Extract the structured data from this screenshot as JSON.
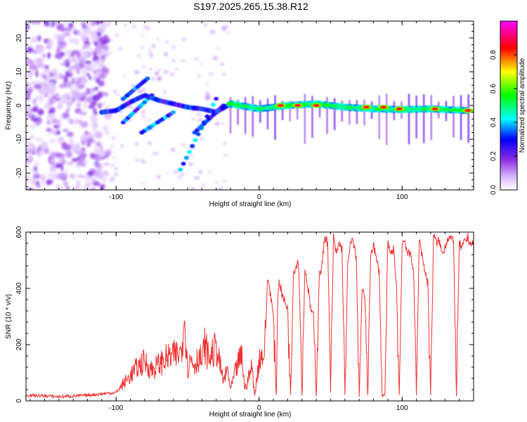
{
  "figure_title": "S197.2025.265.15.38.R12",
  "chart_data": [
    {
      "type": "heatmap",
      "title": "S197.2025.265.15.38.R12",
      "xlabel": "Height of straight line (km)",
      "ylabel": "Frequency (Hz)",
      "xlim": [
        -163,
        150
      ],
      "ylim": [
        -25,
        25
      ],
      "x_ticks": [
        -100,
        0,
        100
      ],
      "x_tick_labels": [
        "-100",
        "0",
        "100"
      ],
      "y_ticks": [
        20,
        10,
        0,
        -10,
        -20
      ],
      "y_tick_labels": [
        "20",
        "10",
        "0",
        "-10",
        "-20"
      ],
      "colorbar": {
        "label": "Normalized spectral amplitude",
        "range": [
          0,
          1
        ],
        "ticks": [
          0.0,
          0.2,
          0.4,
          0.6,
          0.8
        ],
        "tick_labels": [
          "0.0",
          "0.2",
          "0.4",
          "0.6",
          "0.8"
        ],
        "colormap": [
          "#ffffff",
          "#d8b4ff",
          "#8a2be2",
          "#0000ff",
          "#00ffff",
          "#00ff00",
          "#ffff00",
          "#ff0000",
          "#ff00ff"
        ]
      },
      "carrier_line": {
        "x": [
          -110,
          -100,
          -90,
          -80,
          -70,
          -60,
          -50,
          -40,
          -30,
          -20,
          0,
          20,
          40,
          60,
          80,
          100,
          120,
          145
        ],
        "frequency": [
          -2,
          -1.5,
          1,
          3,
          1.5,
          0.5,
          -0.5,
          -1,
          -2,
          0.5,
          -1,
          0,
          0.5,
          -0.5,
          -1,
          -1.2,
          -1,
          -1.5
        ]
      },
      "bright_peaks": [
        {
          "x": 15,
          "frequency": 0,
          "amplitude": 1.0
        },
        {
          "x": 27,
          "frequency": 0,
          "amplitude": 0.95
        },
        {
          "x": 40,
          "frequency": 0,
          "amplitude": 0.95
        },
        {
          "x": 75,
          "frequency": -0.5,
          "amplitude": 0.9
        },
        {
          "x": 87,
          "frequency": -0.5,
          "amplitude": 0.9
        },
        {
          "x": 98,
          "frequency": -1,
          "amplitude": 0.95
        },
        {
          "x": 123,
          "frequency": -1,
          "amplitude": 0.9
        },
        {
          "x": 146,
          "frequency": -1.5,
          "amplitude": 0.95
        }
      ],
      "ghost_branches": [
        {
          "x": [
            -95,
            -75
          ],
          "frequency": [
            -5,
            3
          ]
        },
        {
          "x": [
            -82,
            -60
          ],
          "frequency": [
            -8,
            -2
          ]
        },
        {
          "x": [
            -55,
            -30
          ],
          "frequency": [
            -19,
            2
          ]
        },
        {
          "x": [
            -45,
            -25
          ],
          "frequency": [
            -8,
            0
          ]
        },
        {
          "x": [
            -95,
            -78
          ],
          "frequency": [
            2,
            8
          ]
        }
      ]
    },
    {
      "type": "line",
      "xlabel": "Height of straight line (km)",
      "ylabel": "SNR (10 * v/v)",
      "xlim": [
        -163,
        150
      ],
      "ylim": [
        0,
        600
      ],
      "x_ticks": [
        -100,
        0,
        100
      ],
      "x_tick_labels": [
        "-100",
        "0",
        "100"
      ],
      "y_ticks": [
        0,
        200,
        400,
        600
      ],
      "y_tick_labels": [
        "0",
        "200",
        "400",
        "600"
      ],
      "series": [
        {
          "name": "SNR",
          "color": "#f03030",
          "x": [
            -163,
            -150,
            -140,
            -130,
            -120,
            -110,
            -100,
            -95,
            -90,
            -85,
            -80,
            -75,
            -70,
            -65,
            -60,
            -55,
            -52,
            -50,
            -48,
            -45,
            -42,
            -40,
            -38,
            -35,
            -30,
            -25,
            -22,
            -20,
            -15,
            -12,
            -10,
            -5,
            -3,
            0,
            2,
            4,
            6,
            8,
            10,
            12,
            13,
            14,
            16,
            18,
            20,
            22,
            24,
            26,
            27,
            28,
            30,
            32,
            34,
            36,
            38,
            40,
            42,
            44,
            46,
            48,
            50,
            52,
            54,
            56,
            58,
            60,
            62,
            64,
            66,
            68,
            70,
            72,
            74,
            76,
            78,
            80,
            82,
            84,
            86,
            88,
            90,
            92,
            94,
            96,
            98,
            100,
            102,
            104,
            106,
            108,
            110,
            112,
            114,
            116,
            118,
            120,
            122,
            124,
            126,
            128,
            130,
            132,
            134,
            136,
            138,
            140,
            142,
            144,
            146,
            148,
            150
          ],
          "values": [
            20,
            18,
            15,
            17,
            20,
            25,
            30,
            60,
            90,
            120,
            140,
            110,
            130,
            150,
            160,
            170,
            290,
            110,
            150,
            130,
            160,
            140,
            200,
            150,
            190,
            70,
            110,
            40,
            130,
            160,
            40,
            120,
            20,
            150,
            160,
            180,
            440,
            380,
            300,
            20,
            360,
            430,
            380,
            350,
            330,
            20,
            460,
            480,
            500,
            450,
            20,
            470,
            410,
            330,
            300,
            20,
            440,
            480,
            590,
            560,
            30,
            580,
            520,
            560,
            540,
            20,
            480,
            560,
            570,
            500,
            20,
            390,
            370,
            20,
            520,
            560,
            500,
            460,
            20,
            20,
            560,
            520,
            540,
            420,
            20,
            560,
            570,
            520,
            520,
            470,
            20,
            580,
            520,
            460,
            420,
            20,
            590,
            560,
            570,
            520,
            550,
            580,
            580,
            560,
            20,
            560,
            540,
            570,
            580,
            560,
            550
          ]
        }
      ]
    }
  ]
}
